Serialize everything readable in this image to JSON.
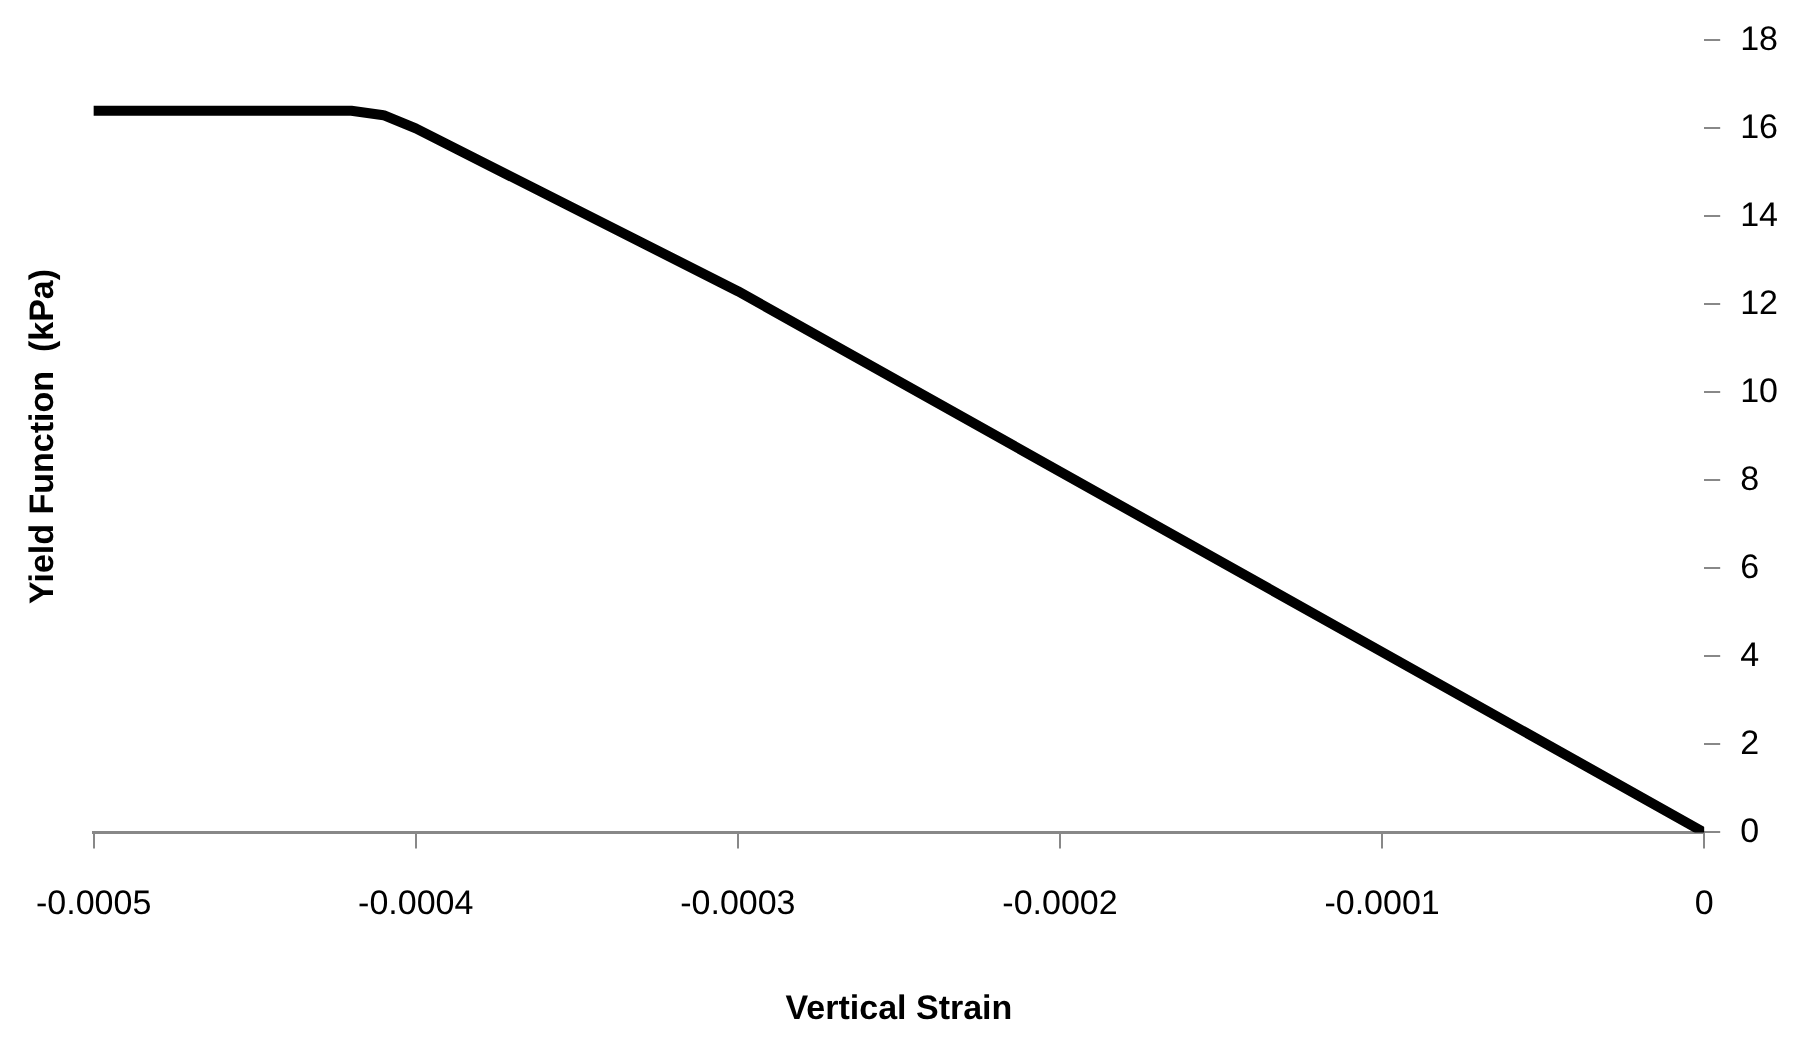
{
  "chart_data": {
    "type": "line",
    "xlabel": "Vertical Strain",
    "ylabel": "Yield Function  (kPa)",
    "x": [
      -0.0005,
      -0.00042,
      -0.00041,
      -0.0004,
      -0.0003,
      -0.0002,
      -0.0001,
      0
    ],
    "series": [
      {
        "color": "#000000",
        "values": [
          16.4,
          16.4,
          16.3,
          16.0,
          12.3,
          8.2,
          4.1,
          0
        ]
      }
    ],
    "xlim": [
      -0.0005,
      0
    ],
    "xticks": [
      -0.0005,
      -0.0004,
      -0.0003,
      -0.0002,
      -0.0001,
      0
    ],
    "ylim": [
      0,
      18
    ],
    "yticks": [
      0,
      2,
      4,
      6,
      8,
      10,
      12,
      14,
      16,
      18
    ],
    "grid": false,
    "legend": false,
    "marker": "none",
    "line_style": "solid"
  }
}
